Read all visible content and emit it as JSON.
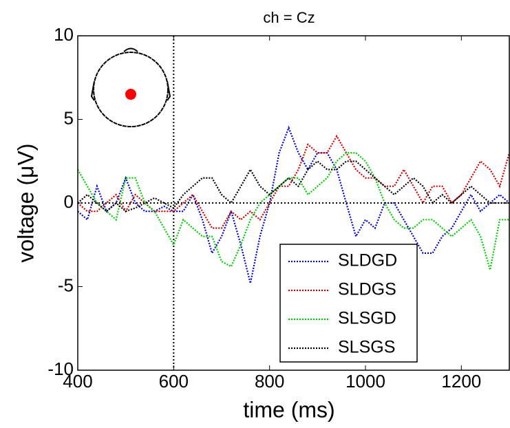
{
  "chart_data": {
    "type": "line",
    "title": "ch = Cz",
    "xlabel": "time (ms)",
    "ylabel": "voltage (μV)",
    "x": [
      400,
      420,
      440,
      460,
      480,
      500,
      520,
      540,
      560,
      580,
      600,
      620,
      640,
      660,
      680,
      700,
      720,
      740,
      760,
      780,
      800,
      820,
      840,
      860,
      880,
      900,
      920,
      940,
      960,
      980,
      1000,
      1020,
      1040,
      1060,
      1080,
      1100,
      1120,
      1140,
      1160,
      1180,
      1200,
      1220,
      1240,
      1260,
      1280,
      1300
    ],
    "series": [
      {
        "name": "SLDGD",
        "color": "#0000cc",
        "values": [
          -0.5,
          -1,
          1,
          -0.5,
          0,
          1.5,
          0,
          -0.5,
          -0.5,
          -0.2,
          -0.5,
          -0.5,
          0.5,
          -1,
          -3,
          -2,
          -0.5,
          -2.5,
          -4.8,
          -2,
          0,
          3,
          4.5,
          3,
          2,
          3,
          3,
          2,
          0,
          -2,
          -1,
          -1.5,
          0,
          0,
          -1,
          -2,
          -3,
          -3,
          -2,
          -1.5,
          -0.5,
          0.5,
          -0.5,
          0,
          0.5,
          0
        ]
      },
      {
        "name": "SLDGS",
        "color": "#cc0000",
        "values": [
          0,
          -0.5,
          -0.5,
          0,
          0.5,
          -0.5,
          0.5,
          0,
          -0.5,
          -0.5,
          -0.5,
          0,
          0.5,
          -0.5,
          -1.5,
          -1.5,
          -0.5,
          -1,
          -0.5,
          -1,
          0,
          1,
          1,
          2,
          3.5,
          3,
          3,
          4,
          3,
          2,
          1.5,
          1.5,
          1,
          1,
          2,
          1,
          0,
          1,
          1,
          0,
          0.5,
          1.5,
          2.5,
          2,
          1,
          3
        ]
      },
      {
        "name": "SLSGD",
        "color": "#00cc00",
        "values": [
          2,
          1,
          0,
          -0.5,
          -1,
          1.5,
          1.5,
          0,
          -0.5,
          -1.5,
          -2.5,
          -1,
          -1.5,
          -2,
          -2,
          -3.5,
          -3.8,
          -2.5,
          -1,
          0,
          0.5,
          1,
          1.5,
          1.5,
          0.5,
          1,
          1.5,
          2.5,
          3,
          3,
          2.5,
          1.5,
          0,
          -1,
          -1.5,
          -1.5,
          -1,
          -1,
          -1.5,
          -2,
          -1.5,
          -1,
          -2,
          -4,
          -1,
          -1
        ]
      },
      {
        "name": "SLSGS",
        "color": "#000000",
        "values": [
          0,
          0.5,
          0,
          -0.5,
          0,
          -0.5,
          -0.3,
          0,
          0.3,
          0,
          -0.3,
          0.5,
          1,
          1.5,
          1.5,
          0.5,
          0,
          1,
          2,
          1,
          0.5,
          1,
          1.5,
          1,
          2,
          2.5,
          2,
          2,
          2.5,
          2.5,
          2,
          1.5,
          1,
          0.5,
          1,
          1.5,
          1,
          0,
          0.5,
          0,
          0.5,
          1,
          0.5,
          0,
          0,
          0
        ]
      }
    ],
    "xlim": [
      400,
      1300
    ],
    "xticks": [
      400,
      600,
      800,
      1000,
      1200
    ],
    "ylim": [
      -10,
      10
    ],
    "yticks": [
      -10,
      -5,
      0,
      5,
      10
    ],
    "vline": 600,
    "hline": 0,
    "legend": "lower-right"
  }
}
